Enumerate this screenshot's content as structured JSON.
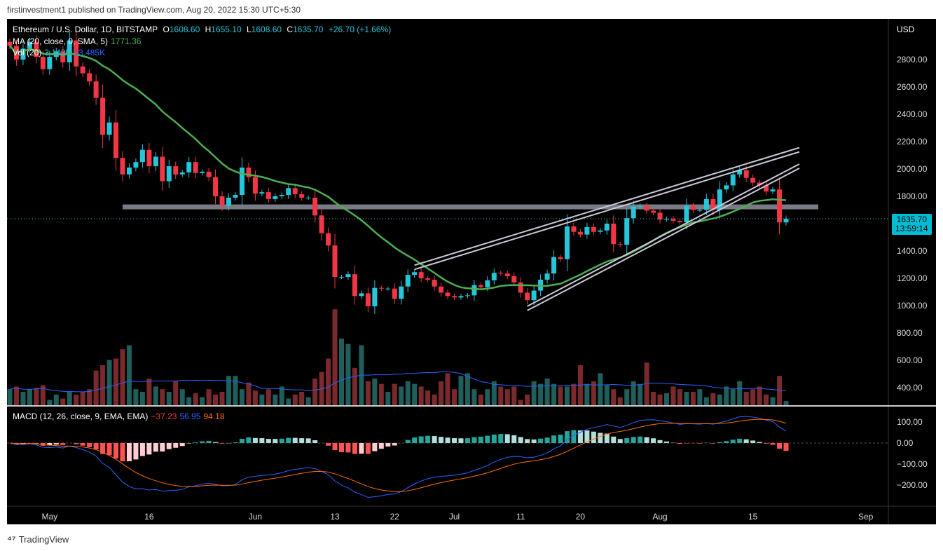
{
  "header": {
    "published": "firstinvestment1 published on TradingView.com, Aug 20, 2022 15:30 UTC+5:30"
  },
  "legend": {
    "symbol": "Ethereum / U.S. Dollar, 1D, BITSTAMP",
    "o_label": "O",
    "o": "1608.60",
    "h_label": "H",
    "h": "1655.10",
    "l_label": "L",
    "l": "1608.60",
    "c_label": "C",
    "c": "1635.70",
    "change": "+26.70 (+1.66%)",
    "ma_label": "MA (20, close, 0, SMA, 5)",
    "ma_value": "1771.36",
    "vol_label": "Vol (20)",
    "vol_value": "3.143K",
    "vol_ma": "13.485K",
    "macd_label": "MACD (12, 26, close, 9, EMA, EMA)",
    "macd_hist": "−37.23",
    "macd_line": "56.95",
    "macd_signal": "94.18"
  },
  "price_tag": {
    "price": "1635.70",
    "countdown": "13:59:14"
  },
  "axis": {
    "currency": "USD",
    "price_ticks": [
      "2800.00",
      "2600.00",
      "2400.00",
      "2200.00",
      "2000.00",
      "1800.00",
      "1400.00",
      "1200.00",
      "1000.00",
      "800.00",
      "600.00",
      "400.00"
    ],
    "macd_ticks": [
      "100.00",
      "0.00",
      "−100.00",
      "−200.00"
    ],
    "date_ticks": [
      {
        "label": "May",
        "date": "2022-05-01"
      },
      {
        "label": "16",
        "date": "2022-05-16"
      },
      {
        "label": "Jun",
        "date": "2022-06-01"
      },
      {
        "label": "13",
        "date": "2022-06-13"
      },
      {
        "label": "22",
        "date": "2022-06-22"
      },
      {
        "label": "Jul",
        "date": "2022-07-01"
      },
      {
        "label": "11",
        "date": "2022-07-11"
      },
      {
        "label": "20",
        "date": "2022-07-20"
      },
      {
        "label": "Aug",
        "date": "2022-08-01"
      },
      {
        "label": "15",
        "date": "2022-08-15"
      },
      {
        "label": "Sep",
        "date": "2022-09-01"
      }
    ]
  },
  "colors": {
    "up": "#26c6da",
    "down": "#f23645",
    "ma": "#4caf50",
    "vol_ma": "#2962ff",
    "macd": "#2962ff",
    "signal": "#ff6d00",
    "level": "#787b86"
  },
  "chart_data": {
    "type": "candlestick",
    "start_date": "2022-04-25",
    "closes": [
      2900,
      2800,
      2880,
      2930,
      2820,
      2730,
      2820,
      2860,
      2780,
      2940,
      2750,
      2700,
      2640,
      2520,
      2250,
      2340,
      2080,
      1960,
      2010,
      2050,
      2140,
      2020,
      2090,
      1910,
      2020,
      1960,
      1975,
      2050,
      1970,
      1980,
      1940,
      1800,
      1730,
      1790,
      1810,
      2010,
      1940,
      1820,
      1830,
      1780,
      1800,
      1810,
      1860,
      1815,
      1790,
      1790,
      1660,
      1530,
      1440,
      1210,
      1210,
      1230,
      1070,
      1090,
      995,
      1130,
      1125,
      1125,
      1050,
      1140,
      1225,
      1245,
      1200,
      1190,
      1140,
      1095,
      1070,
      1060,
      1070,
      1075,
      1150,
      1135,
      1185,
      1240,
      1235,
      1215,
      1170,
      1095,
      1040,
      1110,
      1190,
      1235,
      1355,
      1340,
      1580,
      1540,
      1520,
      1575,
      1540,
      1550,
      1600,
      1450,
      1445,
      1640,
      1725,
      1730,
      1695,
      1680,
      1630,
      1635,
      1620,
      1610,
      1730,
      1700,
      1700,
      1780,
      1700,
      1850,
      1880,
      1960,
      1990,
      1935,
      1900,
      1880,
      1835,
      1850,
      1609,
      1635.7
    ],
    "volumes_k": [
      12,
      14,
      10,
      12,
      13,
      15,
      4,
      8,
      5,
      10,
      8,
      10,
      12,
      26,
      30,
      34,
      35,
      42,
      45,
      12,
      10,
      20,
      14,
      12,
      10,
      18,
      12,
      6,
      9,
      6,
      12,
      8,
      10,
      22,
      22,
      12,
      17,
      11,
      8,
      12,
      8,
      14,
      5,
      8,
      10,
      6,
      20,
      25,
      35,
      72,
      50,
      46,
      28,
      45,
      18,
      20,
      16,
      10,
      16,
      14,
      18,
      16,
      14,
      11,
      8,
      18,
      24,
      12,
      22,
      24,
      12,
      8,
      12,
      18,
      14,
      12,
      14,
      4,
      8,
      18,
      16,
      20,
      16,
      14,
      14,
      16,
      30,
      16,
      18,
      24,
      15,
      12,
      6,
      12,
      18,
      16,
      32,
      10,
      8,
      9,
      14,
      12,
      10,
      10,
      12,
      6,
      9,
      8,
      14,
      12,
      18,
      10,
      12,
      14,
      8,
      6,
      22,
      3.143
    ],
    "support_level": 1720,
    "channel_upper": [
      [
        "2022-06-25",
        1265
      ],
      [
        "2022-08-22",
        2125
      ]
    ],
    "channel_lower": [
      [
        "2022-07-12",
        965
      ],
      [
        "2022-08-22",
        2005
      ]
    ],
    "price_range": [
      300,
      2950
    ],
    "macd_range": [
      -300,
      160
    ]
  }
}
